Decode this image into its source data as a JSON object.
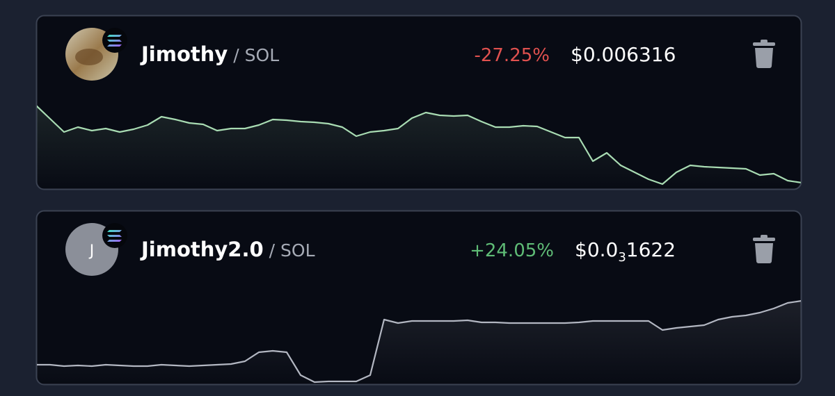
{
  "cards": [
    {
      "name": "Jimothy",
      "pair": "/ SOL",
      "change": "-27.25%",
      "change_color": "#e0514f",
      "price": {
        "lead": "$0.006316"
      },
      "sparkline": {
        "color": "#a9dcb3",
        "ylim": [
          0,
          132
        ],
        "values": [
          120,
          101,
          82,
          89,
          84,
          87,
          82,
          86,
          92,
          104,
          100,
          95,
          93,
          84,
          87,
          87,
          92,
          100,
          99,
          97,
          96,
          94,
          89,
          76,
          82,
          84,
          87,
          102,
          110,
          106,
          105,
          106,
          97,
          89,
          89,
          91,
          90,
          82,
          74,
          74,
          40,
          52,
          34,
          24,
          14,
          7,
          24,
          34,
          32,
          31,
          30,
          29,
          20,
          22,
          12,
          9
        ]
      }
    },
    {
      "name": "Jimothy2.0",
      "avatar_letter": "J",
      "pair": "/ SOL",
      "change": "+24.05%",
      "change_color": "#5fbc76",
      "price": {
        "lead": "$0.0",
        "subscript": "3",
        "digits": "1622"
      },
      "sparkline": {
        "color": "#b3b7c2",
        "ylim": [
          0,
          133
        ],
        "values": [
          28,
          28,
          26,
          27,
          26,
          28,
          27,
          26,
          26,
          28,
          27,
          26,
          27,
          28,
          29,
          33,
          46,
          48,
          46,
          13,
          3,
          4,
          4,
          4,
          13,
          93,
          88,
          91,
          91,
          91,
          91,
          92,
          89,
          89,
          88,
          88,
          88,
          88,
          88,
          89,
          91,
          91,
          91,
          91,
          91,
          78,
          81,
          83,
          85,
          93,
          97,
          99,
          103,
          109,
          117,
          120
        ]
      }
    }
  ]
}
